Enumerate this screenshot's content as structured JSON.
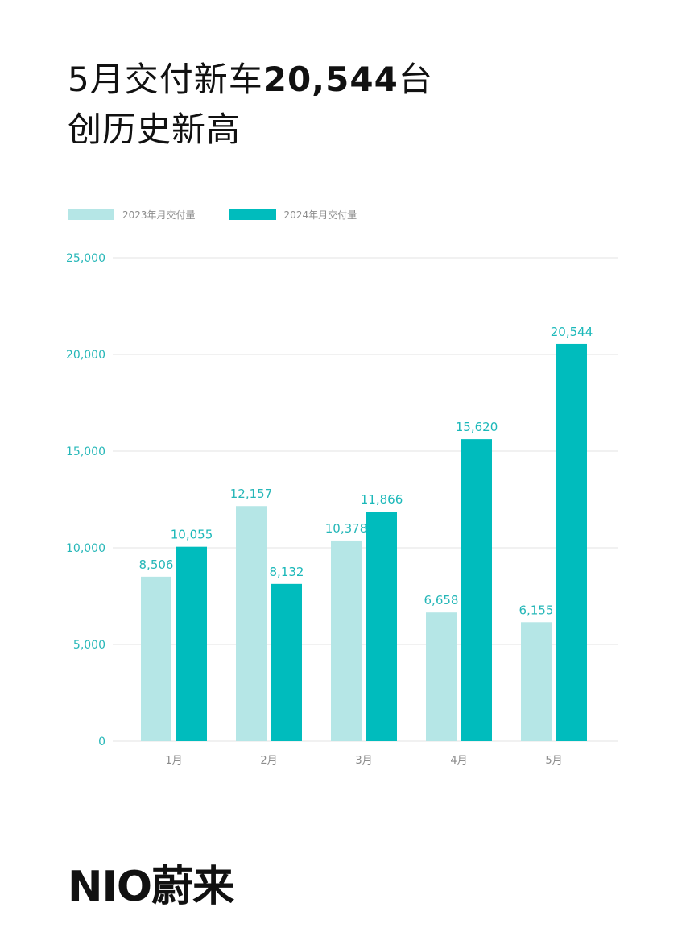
{
  "headline": {
    "line1_prefix": "5月交付新车",
    "line1_number": "20,544",
    "line1_suffix": "台",
    "line2": "创历史新高"
  },
  "colors": {
    "series_2023": "#b5e6e6",
    "series_2024": "#00bcbd",
    "label_2024": "#1bb8b9",
    "axis_label": "#26b7b8",
    "grid": "#e3e3e3",
    "text_dark": "#111111"
  },
  "chart_data": {
    "type": "bar",
    "categories": [
      "1月",
      "2月",
      "3月",
      "4月",
      "5月"
    ],
    "series": [
      {
        "name": "2023年月交付量",
        "values": [
          8506,
          12157,
          10378,
          6658,
          6155
        ],
        "labels": [
          "8,506",
          "12,157",
          "10,378",
          "6,658",
          "6,155"
        ]
      },
      {
        "name": "2024年月交付量",
        "values": [
          10055,
          8132,
          11866,
          15620,
          20544
        ],
        "labels": [
          "10,055",
          "8,132",
          "11,866",
          "15,620",
          "20,544"
        ]
      }
    ],
    "ylim": [
      0,
      25000
    ],
    "yticks": [
      0,
      5000,
      10000,
      15000,
      20000,
      25000
    ],
    "ytick_labels": [
      "0",
      "5,000",
      "10,000",
      "15,000",
      "20,000",
      "25,000"
    ],
    "grid": true,
    "legend": "top-left"
  },
  "logo": {
    "text": "NIO蔚来"
  }
}
